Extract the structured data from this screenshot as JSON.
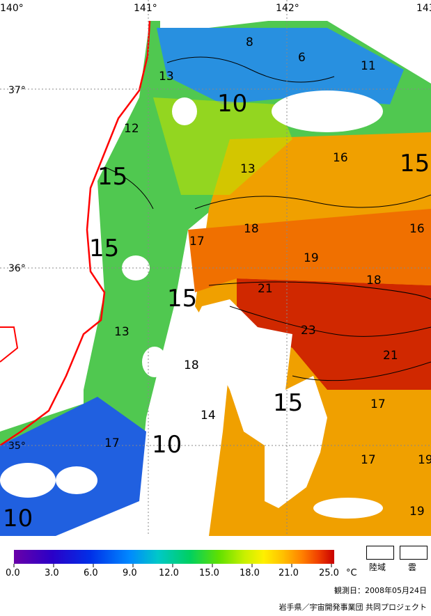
{
  "map": {
    "lon_ticks": [
      {
        "label": "140°"
      },
      {
        "label": "141°"
      },
      {
        "label": "142°"
      },
      {
        "label": "143°"
      }
    ],
    "lat_ticks": [
      {
        "label": "37°"
      },
      {
        "label": "36°"
      },
      {
        "label": "35°"
      }
    ],
    "isotherms": [
      "8",
      "6",
      "11",
      "13",
      "10",
      "12",
      "15",
      "13",
      "16",
      "15",
      "16",
      "15",
      "17",
      "18",
      "19",
      "18",
      "21",
      "15",
      "13",
      "23",
      "21",
      "18",
      "15",
      "17",
      "14",
      "17",
      "10",
      "17",
      "19",
      "19",
      "10"
    ]
  },
  "legend": {
    "ticks": [
      "0.0",
      "3.0",
      "6.0",
      "9.0",
      "12.0",
      "15.0",
      "18.0",
      "21.0",
      "25.0"
    ],
    "unit": "°C",
    "land_label": "陸域",
    "cloud_label": "雲",
    "colors": [
      "#6a00a8",
      "#2a00c8",
      "#0030e8",
      "#0088ff",
      "#00c8c8",
      "#00d060",
      "#60e000",
      "#c8f000",
      "#fff000",
      "#ffc000",
      "#ff8000",
      "#f04000",
      "#c80000"
    ]
  },
  "observation_date": "観測日：2008年05月24日",
  "credit": "岩手県／宇宙開発事業団  共同プロジェクト"
}
